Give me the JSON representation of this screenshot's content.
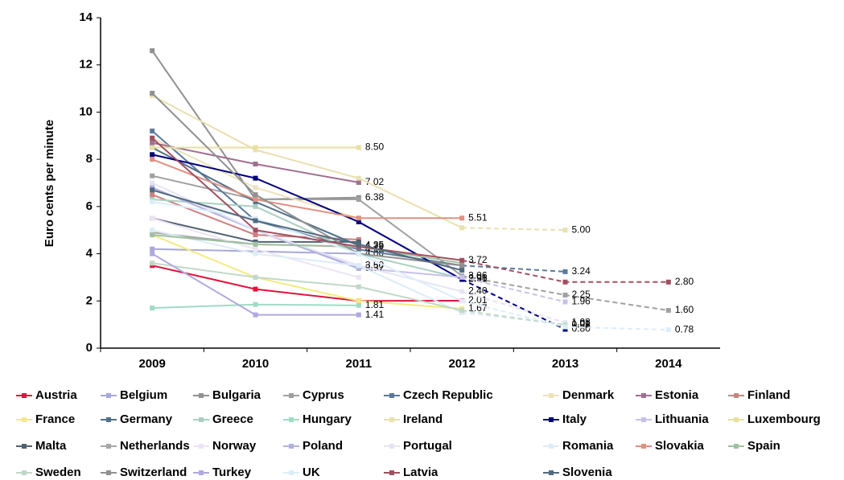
{
  "chart_data": {
    "type": "line",
    "y_label": "Euro cents per minute",
    "categories": [
      "2009",
      "2010",
      "2011",
      "2012",
      "2013",
      "2014"
    ],
    "ylim": [
      0,
      14
    ],
    "yticks": [
      0,
      2,
      4,
      6,
      8,
      10,
      12,
      14
    ],
    "series": [
      {
        "name": "Austria",
        "color": "#e0143c",
        "values": [
          3.5,
          2.5,
          2.0,
          2.01,
          null,
          null
        ],
        "value_labels": [
          null,
          null,
          null,
          "2.01",
          null,
          null
        ]
      },
      {
        "name": "Belgium",
        "color": "#a8a8d8",
        "values": [
          4.2,
          4.1,
          4.0,
          null,
          null,
          null
        ],
        "value_labels": [
          null,
          null,
          "4.00",
          null,
          null,
          null
        ]
      },
      {
        "name": "Bulgaria",
        "color": "#909090",
        "values": [
          12.6,
          6.3,
          6.38,
          null,
          null,
          null
        ],
        "value_labels": [
          null,
          null,
          "6.38",
          null,
          null,
          null
        ]
      },
      {
        "name": "Cyprus",
        "color": "#a0a0a0",
        "values": [
          7.3,
          6.3,
          6.3,
          3.06,
          2.25,
          1.6
        ],
        "value_labels": [
          null,
          null,
          null,
          "3.06",
          "2.25",
          "1.60"
        ]
      },
      {
        "name": "Czech Republic",
        "color": "#5a7a9a",
        "values": [
          9.2,
          5.4,
          4.18,
          3.5,
          3.24,
          null
        ],
        "value_labels": [
          null,
          null,
          "4.18",
          null,
          "3.24",
          null
        ]
      },
      {
        "name": "Denmark",
        "color": "#ece2bc",
        "values": [
          8.9,
          6.8,
          5.5,
          null,
          null,
          null
        ],
        "value_labels": [
          null,
          null,
          null,
          null,
          null,
          null
        ]
      },
      {
        "name": "Estonia",
        "color": "#a07090",
        "values": [
          8.7,
          7.8,
          7.02,
          null,
          null,
          null
        ],
        "value_labels": [
          null,
          null,
          "7.02",
          null,
          null,
          null
        ]
      },
      {
        "name": "Finland",
        "color": "#d08080",
        "values": [
          6.5,
          4.8,
          4.6,
          null,
          null,
          null
        ],
        "value_labels": [
          null,
          null,
          null,
          null,
          null,
          null
        ]
      },
      {
        "name": "France",
        "color": "#f4ea80",
        "values": [
          4.8,
          3.0,
          2.0,
          1.67,
          null,
          null
        ],
        "value_labels": [
          null,
          null,
          null,
          "1.67",
          null,
          null
        ]
      },
      {
        "name": "Germany",
        "color": "#50708a",
        "values": [
          8.5,
          6.2,
          4.35,
          null,
          null,
          null
        ],
        "value_labels": [
          null,
          null,
          "4.35",
          null,
          null,
          null
        ]
      },
      {
        "name": "Greece",
        "color": "#a8d0c0",
        "values": [
          6.3,
          6.0,
          4.0,
          2.96,
          null,
          null
        ],
        "value_labels": [
          null,
          null,
          null,
          "2.96",
          null,
          null
        ]
      },
      {
        "name": "Hungary",
        "color": "#a0dcc4",
        "values": [
          1.7,
          1.85,
          1.81,
          null,
          null,
          null
        ],
        "value_labels": [
          null,
          null,
          "1.81",
          null,
          null,
          null
        ]
      },
      {
        "name": "Ireland",
        "color": "#e8e0b0",
        "values": [
          10.7,
          8.4,
          7.2,
          5.1,
          5.0,
          null
        ],
        "value_labels": [
          null,
          null,
          null,
          null,
          "5.00",
          null
        ]
      },
      {
        "name": "Italy",
        "color": "#000080",
        "values": [
          8.2,
          7.2,
          5.35,
          2.91,
          0.8,
          null
        ],
        "value_labels": [
          null,
          null,
          null,
          "2.91",
          "0.80",
          null
        ]
      },
      {
        "name": "Lithuania",
        "color": "#c8c0e8",
        "values": [
          6.8,
          5.0,
          3.4,
          3.0,
          1.96,
          null
        ],
        "value_labels": [
          null,
          null,
          null,
          null,
          "1.96",
          null
        ]
      },
      {
        "name": "Luxembourg",
        "color": "#e8e0a0",
        "values": [
          8.5,
          8.5,
          8.5,
          null,
          null,
          null
        ],
        "value_labels": [
          null,
          null,
          "8.50",
          null,
          null,
          null
        ]
      },
      {
        "name": "Malta",
        "color": "#506070",
        "values": [
          5.5,
          4.5,
          4.5,
          null,
          null,
          null
        ],
        "value_labels": [
          null,
          null,
          null,
          null,
          null,
          null
        ]
      },
      {
        "name": "Netherlands",
        "color": "#a8a8a8",
        "values": [
          4.9,
          4.4,
          4.29,
          null,
          null,
          null
        ],
        "value_labels": [
          null,
          null,
          "4.29",
          null,
          null,
          null
        ]
      },
      {
        "name": "Norway",
        "color": "#ece4f4",
        "values": [
          5.5,
          4.2,
          3.0,
          null,
          null,
          null
        ],
        "value_labels": [
          null,
          null,
          null,
          null,
          null,
          null
        ]
      },
      {
        "name": "Poland",
        "color": "#b0b0e0",
        "values": [
          6.8,
          5.0,
          3.37,
          null,
          null,
          null
        ],
        "value_labels": [
          null,
          null,
          "3.37",
          null,
          null,
          null
        ]
      },
      {
        "name": "Portugal",
        "color": "#e4e4f4",
        "values": [
          7.0,
          5.0,
          3.5,
          2.4,
          1.08,
          null
        ],
        "value_labels": [
          null,
          null,
          "3.50",
          "2.40",
          "1.08",
          null
        ]
      },
      {
        "name": "Romania",
        "color": "#dcecf6",
        "values": [
          5.0,
          4.0,
          3.5,
          1.5,
          1.01,
          null
        ],
        "value_labels": [
          null,
          null,
          null,
          null,
          "1.01",
          null
        ]
      },
      {
        "name": "Slovakia",
        "color": "#e09080",
        "values": [
          8.0,
          6.3,
          5.51,
          5.51,
          null,
          null
        ],
        "value_labels": [
          null,
          null,
          null,
          "5.51",
          null,
          null
        ]
      },
      {
        "name": "Spain",
        "color": "#a0c0a0",
        "values": [
          4.8,
          4.4,
          4.3,
          3.6,
          null,
          null
        ],
        "value_labels": [
          null,
          null,
          null,
          null,
          null,
          null
        ]
      },
      {
        "name": "Sweden",
        "color": "#c0d8c8",
        "values": [
          3.6,
          3.0,
          2.6,
          1.6,
          0.98,
          null
        ],
        "value_labels": [
          null,
          null,
          null,
          null,
          "0.98",
          null
        ]
      },
      {
        "name": "Switzerland",
        "color": "#909090",
        "values": [
          10.8,
          6.5,
          4.0,
          3.5,
          null,
          null
        ],
        "value_labels": [
          null,
          null,
          null,
          null,
          null,
          null
        ]
      },
      {
        "name": "Turkey",
        "color": "#b0a8e0",
        "values": [
          4.0,
          1.41,
          1.41,
          null,
          null,
          null
        ],
        "value_labels": [
          null,
          null,
          "1.41",
          null,
          null,
          null
        ]
      },
      {
        "name": "UK",
        "color": "#dceefa",
        "values": [
          6.2,
          5.5,
          4.0,
          2.0,
          0.9,
          0.78
        ],
        "value_labels": [
          null,
          null,
          null,
          null,
          null,
          "0.78"
        ]
      },
      {
        "name": "Latvia",
        "color": "#a05060",
        "values": [
          8.9,
          5.0,
          4.3,
          3.72,
          2.8,
          2.8
        ],
        "value_labels": [
          null,
          null,
          null,
          "3.72",
          null,
          "2.80"
        ]
      },
      {
        "name": "Slovenia",
        "color": "#506a80",
        "values": [
          6.7,
          5.4,
          4.4,
          3.3,
          null,
          null
        ],
        "value_labels": [
          null,
          null,
          null,
          null,
          null,
          null
        ]
      }
    ]
  }
}
